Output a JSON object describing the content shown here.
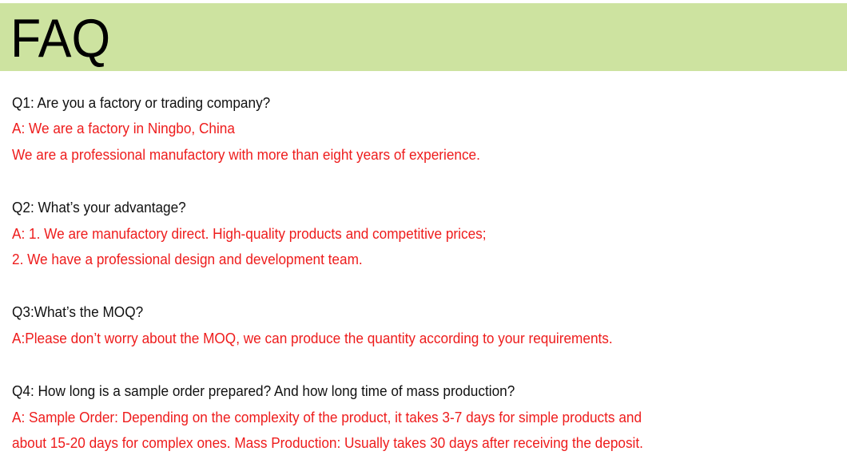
{
  "header": {
    "title": "FAQ",
    "background_color": "#cde3a0"
  },
  "colors": {
    "question": "#111111",
    "answer": "#ee1c1c"
  },
  "faq": [
    {
      "question": "Q1: Are you a factory or trading company?",
      "answer": [
        "A: We are a factory in Ningbo, China",
        "We are a professional manufactory with more than eight years of experience."
      ]
    },
    {
      "question": "Q2: What’s your advantage?",
      "answer": [
        "A: 1. We are manufactory direct. High-quality products and competitive prices;",
        "2. We have a professional design and development team."
      ]
    },
    {
      "question": "Q3:What’s the MOQ?",
      "answer": [
        "A:Please don’t worry about the MOQ, we can produce the quantity according to your requirements."
      ]
    },
    {
      "question": "Q4: How long is a sample order prepared? And how long time of mass production?",
      "answer": [
        "A: Sample Order: Depending on the complexity of the product, it takes 3-7 days for simple products and",
        "about 15-20 days for complex ones. Mass Production: Usually takes 30 days after receiving the deposit."
      ]
    }
  ]
}
